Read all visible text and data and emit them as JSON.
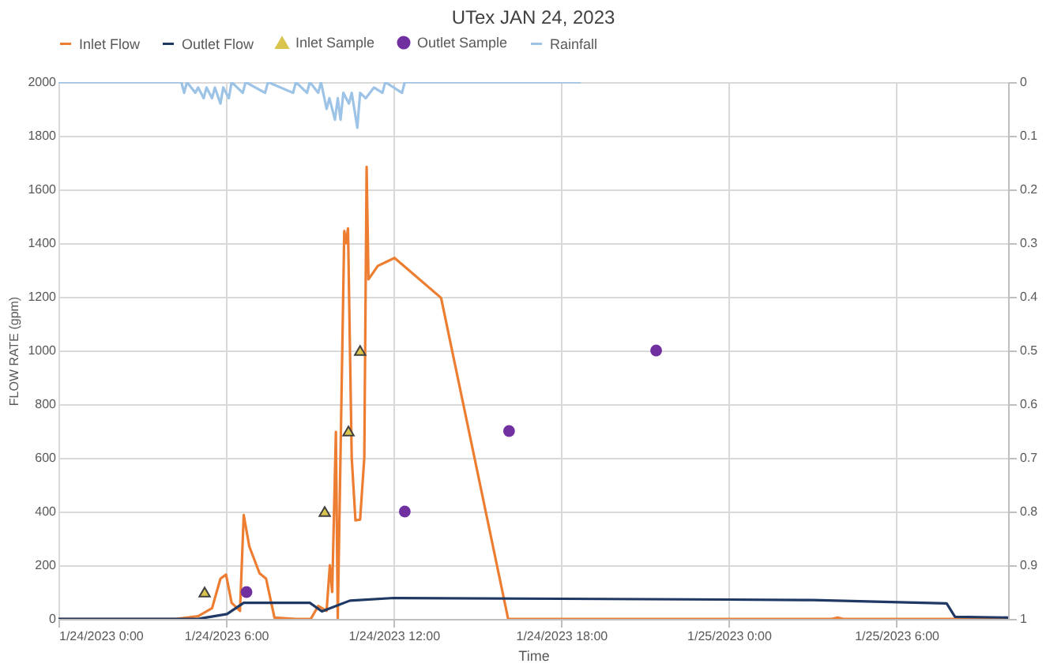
{
  "chart_data": {
    "type": "line",
    "title": "UTex JAN 24, 2023",
    "xlabel": "Time",
    "ylabel": "FLOW RATE (gpm)",
    "xlim": [
      "2023-01-24T00:00",
      "2023-01-25T10:00"
    ],
    "xticks": [
      {
        "value": "2023-01-24T00:00",
        "label": "1/24/2023 0:00"
      },
      {
        "value": "2023-01-24T06:00",
        "label": "1/24/2023 6:00"
      },
      {
        "value": "2023-01-24T12:00",
        "label": "1/24/2023 12:00"
      },
      {
        "value": "2023-01-24T18:00",
        "label": "1/24/2023 18:00"
      },
      {
        "value": "2023-01-25T00:00",
        "label": "1/25/2023 0:00"
      },
      {
        "value": "2023-01-25T06:00",
        "label": "1/25/2023 6:00"
      }
    ],
    "ylim": [
      0,
      2000
    ],
    "yticks": [
      0,
      200,
      400,
      600,
      800,
      1000,
      1200,
      1400,
      1600,
      1800,
      2000
    ],
    "y2lim": [
      1,
      0
    ],
    "y2ticks": [
      0,
      0.1,
      0.2,
      0.3,
      0.4,
      0.5,
      0.6,
      0.7,
      0.8,
      0.9,
      1
    ],
    "grid": true,
    "legend": "top",
    "series": [
      {
        "name": "Inlet Flow",
        "color": "#ed7d31",
        "x": [
          "2023-01-24T00:00",
          "2023-01-24T04:12",
          "2023-01-24T05:00",
          "2023-01-24T05:30",
          "2023-01-24T05:48",
          "2023-01-24T06:00",
          "2023-01-24T06:12",
          "2023-01-24T06:30",
          "2023-01-24T06:38",
          "2023-01-24T06:50",
          "2023-01-24T07:12",
          "2023-01-24T07:26",
          "2023-01-24T07:44",
          "2023-01-24T08:30",
          "2023-01-24T09:02",
          "2023-01-24T09:18",
          "2023-01-24T09:36",
          "2023-01-24T09:43",
          "2023-01-24T09:48",
          "2023-01-24T09:56",
          "2023-01-24T10:00",
          "2023-01-24T10:14",
          "2023-01-24T10:18",
          "2023-01-24T10:22",
          "2023-01-24T10:30",
          "2023-01-24T10:38",
          "2023-01-24T10:48",
          "2023-01-24T10:57",
          "2023-01-24T11:02",
          "2023-01-24T11:06",
          "2023-01-24T11:26",
          "2023-01-24T12:02",
          "2023-01-24T13:42",
          "2023-01-24T16:06",
          "2023-01-25T03:42",
          "2023-01-25T03:54",
          "2023-01-25T04:06",
          "2023-01-25T10:00"
        ],
        "values": [
          0,
          0,
          10,
          40,
          150,
          165,
          60,
          30,
          387,
          270,
          170,
          150,
          5,
          0,
          0,
          48,
          30,
          200,
          100,
          697,
          0,
          1445,
          1400,
          1455,
          600,
          367,
          370,
          600,
          1684,
          1265,
          1315,
          1345,
          1196,
          0,
          0,
          5,
          0,
          0
        ]
      },
      {
        "name": "Outlet Flow",
        "color": "#203864",
        "x": [
          "2023-01-24T00:00",
          "2023-01-24T05:00",
          "2023-01-24T06:02",
          "2023-01-24T06:38",
          "2023-01-24T09:00",
          "2023-01-24T09:26",
          "2023-01-24T10:26",
          "2023-01-24T12:00",
          "2023-01-24T18:00",
          "2023-01-25T00:00",
          "2023-01-25T03:00",
          "2023-01-25T07:48",
          "2023-01-25T08:06",
          "2023-01-25T10:00"
        ],
        "values": [
          0,
          0,
          18,
          60,
          60,
          28,
          68,
          78,
          75,
          72,
          70,
          58,
          8,
          5
        ]
      },
      {
        "name": "Inlet Sample",
        "type": "scatter",
        "marker": "triangle",
        "color": "#d9c44e",
        "x": [
          "2023-01-24T05:14",
          "2023-01-24T09:32",
          "2023-01-24T10:23",
          "2023-01-24T10:48"
        ],
        "values": [
          100,
          400,
          700,
          1000
        ]
      },
      {
        "name": "Outlet Sample",
        "type": "scatter",
        "marker": "circle",
        "color": "#7030a0",
        "x": [
          "2023-01-24T06:44",
          "2023-01-24T12:24",
          "2023-01-24T16:08",
          "2023-01-24T21:24"
        ],
        "values": [
          100,
          400,
          700,
          1000
        ]
      },
      {
        "name": "Rainfall",
        "axis": "y2",
        "color": "#9dc3e6",
        "x": [
          "2023-01-24T00:00",
          "2023-01-24T04:24",
          "2023-01-24T04:30",
          "2023-01-24T04:36",
          "2023-01-24T04:54",
          "2023-01-24T05:00",
          "2023-01-24T05:12",
          "2023-01-24T05:18",
          "2023-01-24T05:30",
          "2023-01-24T05:36",
          "2023-01-24T05:48",
          "2023-01-24T05:54",
          "2023-01-24T06:06",
          "2023-01-24T06:12",
          "2023-01-24T06:36",
          "2023-01-24T06:42",
          "2023-01-24T07:24",
          "2023-01-24T07:30",
          "2023-01-24T08:24",
          "2023-01-24T08:30",
          "2023-01-24T08:54",
          "2023-01-24T09:00",
          "2023-01-24T09:18",
          "2023-01-24T09:24",
          "2023-01-24T09:36",
          "2023-01-24T09:42",
          "2023-01-24T09:54",
          "2023-01-24T10:00",
          "2023-01-24T10:06",
          "2023-01-24T10:12",
          "2023-01-24T10:24",
          "2023-01-24T10:30",
          "2023-01-24T10:42",
          "2023-01-24T10:48",
          "2023-01-24T11:00",
          "2023-01-24T11:18",
          "2023-01-24T11:36",
          "2023-01-24T11:42",
          "2023-01-24T12:18",
          "2023-01-24T12:24",
          "2023-01-24T18:42"
        ],
        "values": [
          0,
          0,
          0.02,
          0,
          0.02,
          0.01,
          0.03,
          0.01,
          0.03,
          0.01,
          0.04,
          0.01,
          0.03,
          0,
          0.02,
          0,
          0.02,
          0,
          0.02,
          0,
          0.02,
          0,
          0.02,
          0,
          0.05,
          0.03,
          0.07,
          0.03,
          0.07,
          0.02,
          0.04,
          0.02,
          0.085,
          0.02,
          0.03,
          0.01,
          0.02,
          0,
          0.02,
          0,
          0
        ]
      }
    ]
  }
}
